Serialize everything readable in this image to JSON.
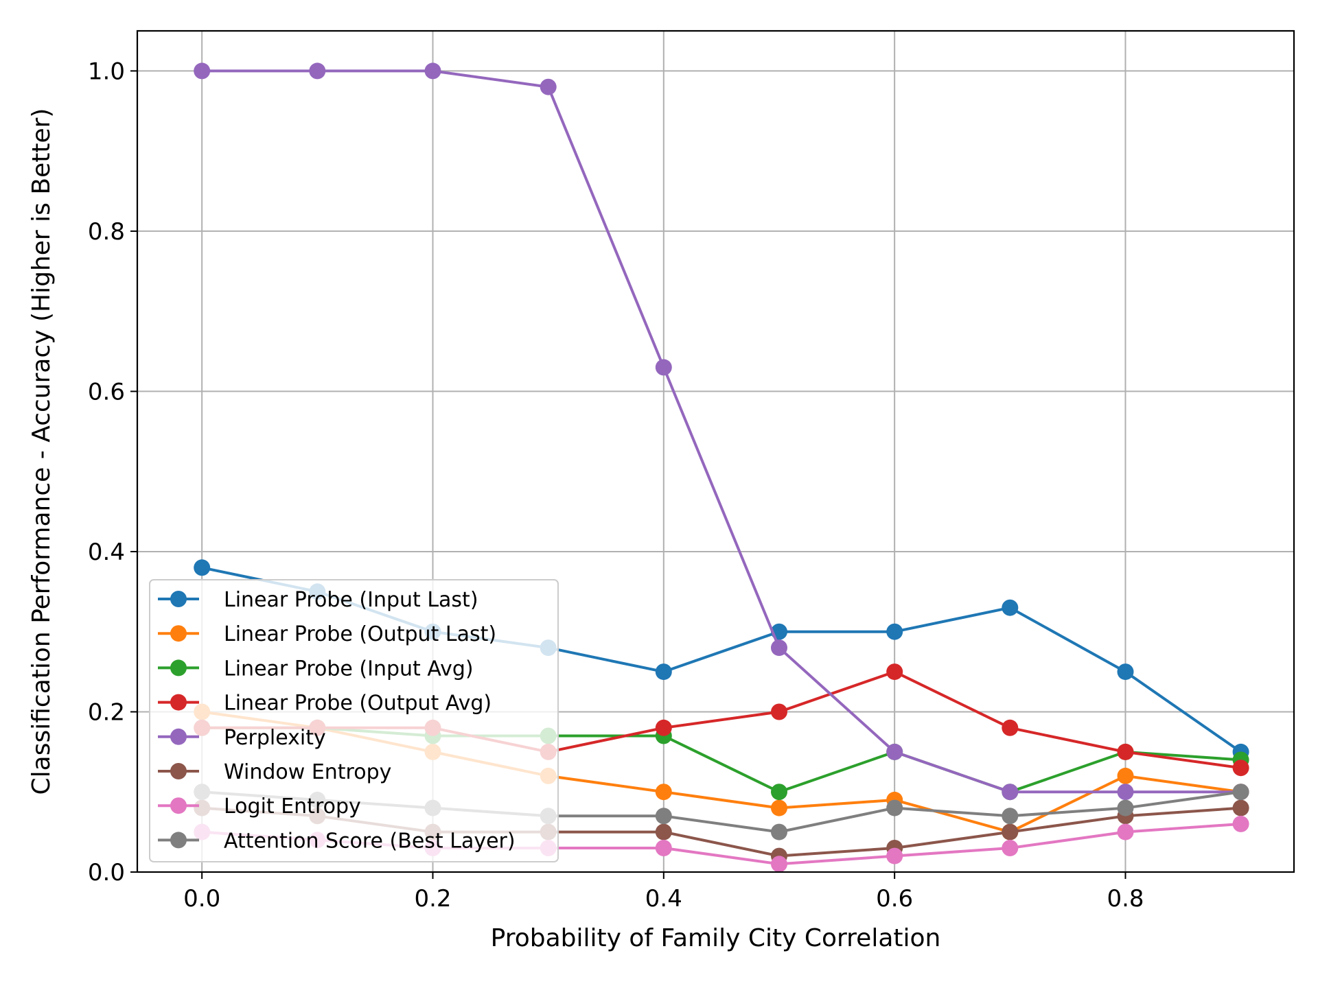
{
  "chart_data": {
    "type": "line",
    "title": "",
    "xlabel": "Probability of Family City Correlation",
    "ylabel": "Classification Performance - Accuracy (Higher is Better)",
    "xlim": [
      -0.056,
      0.946
    ],
    "ylim": [
      0.0,
      1.05
    ],
    "xticks": [
      0.0,
      0.2,
      0.4,
      0.6,
      0.8
    ],
    "xtick_labels": [
      "0.0",
      "0.2",
      "0.4",
      "0.6",
      "0.8"
    ],
    "yticks": [
      0.0,
      0.2,
      0.4,
      0.6,
      0.8,
      1.0
    ],
    "ytick_labels": [
      "0.0",
      "0.2",
      "0.4",
      "0.6",
      "0.8",
      "1.0"
    ],
    "grid": true,
    "legend_position": "lower-left",
    "x": [
      0.0,
      0.1,
      0.2,
      0.3,
      0.4,
      0.5,
      0.6,
      0.7,
      0.8,
      0.9
    ],
    "series": [
      {
        "name": "Linear Probe (Input Last)",
        "color": "#1f77b4",
        "values": [
          0.38,
          0.35,
          0.3,
          0.28,
          0.25,
          0.3,
          0.3,
          0.33,
          0.25,
          0.15
        ]
      },
      {
        "name": "Linear Probe (Output Last)",
        "color": "#ff7f0e",
        "values": [
          0.2,
          0.18,
          0.15,
          0.12,
          0.1,
          0.08,
          0.09,
          0.05,
          0.12,
          0.1
        ]
      },
      {
        "name": "Linear Probe (Input Avg)",
        "color": "#2ca02c",
        "values": [
          0.18,
          0.18,
          0.17,
          0.17,
          0.17,
          0.1,
          0.15,
          0.1,
          0.15,
          0.14
        ]
      },
      {
        "name": "Linear Probe (Output Avg)",
        "color": "#d62728",
        "values": [
          0.18,
          0.18,
          0.18,
          0.15,
          0.18,
          0.2,
          0.25,
          0.18,
          0.15,
          0.13
        ]
      },
      {
        "name": "Perplexity",
        "color": "#9467bd",
        "values": [
          1.0,
          1.0,
          1.0,
          0.98,
          0.63,
          0.28,
          0.15,
          0.1,
          0.1,
          0.1
        ]
      },
      {
        "name": "Window Entropy",
        "color": "#8c564b",
        "values": [
          0.08,
          0.07,
          0.05,
          0.05,
          0.05,
          0.02,
          0.03,
          0.05,
          0.07,
          0.08
        ]
      },
      {
        "name": "Logit Entropy",
        "color": "#e377c2",
        "values": [
          0.05,
          0.04,
          0.03,
          0.03,
          0.03,
          0.01,
          0.02,
          0.03,
          0.05,
          0.06
        ]
      },
      {
        "name": "Attention Score (Best Layer)",
        "color": "#7f7f7f",
        "values": [
          0.1,
          0.09,
          0.08,
          0.07,
          0.07,
          0.05,
          0.08,
          0.07,
          0.08,
          0.1
        ]
      }
    ]
  }
}
